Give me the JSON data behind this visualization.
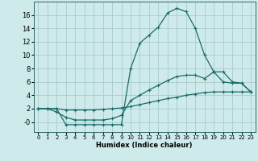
{
  "xlabel": "Humidex (Indice chaleur)",
  "background_color": "#ceeaea",
  "grid_color": "#aacccc",
  "line_color": "#1a6b6b",
  "xlim": [
    -0.5,
    23.5
  ],
  "ylim": [
    -1.5,
    18.0
  ],
  "xticks": [
    0,
    1,
    2,
    3,
    4,
    5,
    6,
    7,
    8,
    9,
    10,
    11,
    12,
    13,
    14,
    15,
    16,
    17,
    18,
    19,
    20,
    21,
    22,
    23
  ],
  "yticks": [
    0,
    2,
    4,
    6,
    8,
    10,
    12,
    14,
    16
  ],
  "ytick_labels": [
    "-0",
    "2",
    "4",
    "6",
    "8",
    "10",
    "12",
    "14",
    "16"
  ],
  "line1_x": [
    0,
    1,
    2,
    3,
    4,
    5,
    6,
    7,
    8,
    9,
    10,
    11,
    12,
    13,
    14,
    15,
    16,
    17,
    18,
    19,
    20,
    21,
    22,
    23
  ],
  "line1_y": [
    2.0,
    2.0,
    2.0,
    -0.4,
    -0.4,
    -0.4,
    -0.4,
    -0.4,
    -0.4,
    -0.4,
    8.0,
    11.8,
    13.0,
    14.2,
    16.3,
    17.0,
    16.5,
    14.0,
    10.0,
    7.5,
    6.0,
    5.8,
    5.8,
    4.5
  ],
  "line2_x": [
    0,
    1,
    2,
    3,
    4,
    5,
    6,
    7,
    8,
    9,
    10,
    11,
    12,
    13,
    14,
    15,
    16,
    17,
    18,
    19,
    20,
    21,
    22,
    23
  ],
  "line2_y": [
    2.0,
    2.0,
    1.5,
    0.7,
    0.3,
    0.3,
    0.3,
    0.3,
    0.5,
    1.0,
    3.2,
    4.0,
    4.8,
    5.5,
    6.2,
    6.8,
    7.0,
    7.0,
    6.5,
    7.5,
    7.5,
    6.0,
    5.8,
    4.5
  ],
  "line3_x": [
    0,
    1,
    2,
    3,
    4,
    5,
    6,
    7,
    8,
    9,
    10,
    11,
    12,
    13,
    14,
    15,
    16,
    17,
    18,
    19,
    20,
    21,
    22,
    23
  ],
  "line3_y": [
    2.0,
    2.0,
    2.0,
    1.8,
    1.8,
    1.8,
    1.8,
    1.9,
    2.0,
    2.1,
    2.3,
    2.6,
    2.9,
    3.2,
    3.5,
    3.7,
    4.0,
    4.2,
    4.4,
    4.5,
    4.5,
    4.5,
    4.5,
    4.5
  ]
}
